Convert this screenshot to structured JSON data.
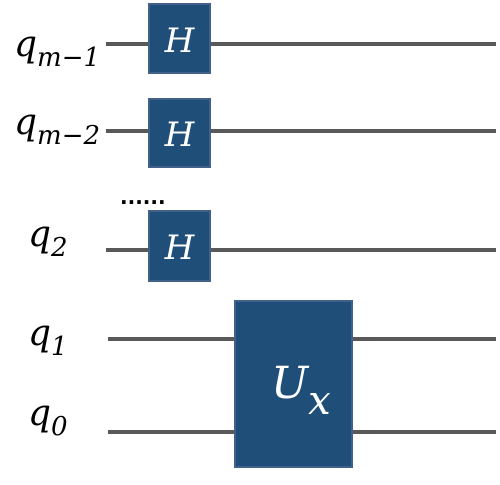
{
  "colors": {
    "wire": "#595959",
    "gate_fill": "#1f4e79",
    "gate_text": "#ffffff",
    "label_text": "#000000"
  },
  "qubits": [
    {
      "base": "q",
      "sub": "m−1"
    },
    {
      "base": "q",
      "sub": "m−2"
    },
    {
      "base": "q",
      "sub": "2"
    },
    {
      "base": "q",
      "sub": "1"
    },
    {
      "base": "q",
      "sub": "0"
    }
  ],
  "ellipsis": "......",
  "gates": {
    "hadamard": {
      "symbol": "H"
    },
    "unitary": {
      "symbol": "U",
      "sub": "x"
    }
  }
}
